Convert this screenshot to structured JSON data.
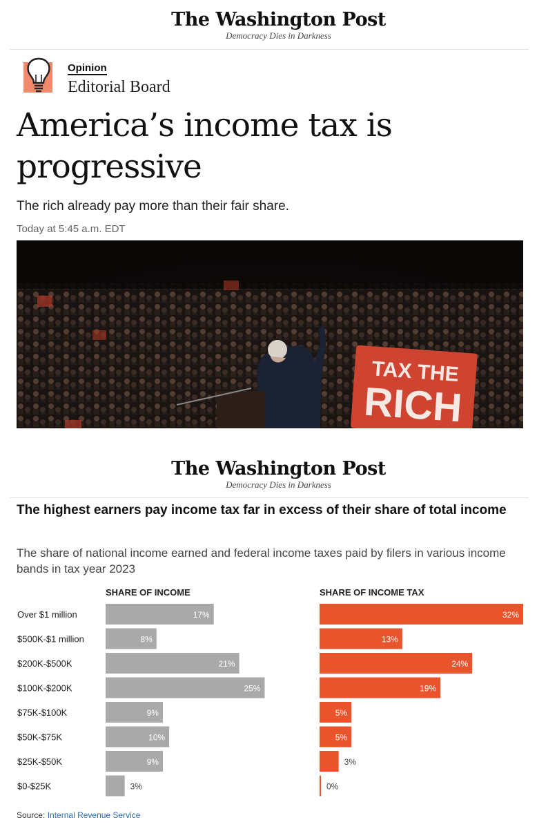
{
  "masthead": {
    "wordmark": "The Washington Post",
    "tagline": "Democracy Dies in Darkness"
  },
  "article": {
    "section": "Opinion",
    "author": "Editorial Board",
    "headline": "America’s income tax is progressive",
    "subhead": "The rich already pay more than their fair share.",
    "timestamp": "Today at 5:45 a.m. EDT"
  },
  "photo": {
    "sign_line1": "TAX THE",
    "sign_line2": "RICH"
  },
  "chart_masthead": {
    "wordmark": "The Washington Post",
    "tagline": "Democracy Dies in Darkness"
  },
  "colors": {
    "income_bar": "#a9a9a9",
    "tax_bar": "#e8542c",
    "accent_bulb": "#f08a6a"
  },
  "chart_data": {
    "type": "bar",
    "orientation": "horizontal",
    "title": "The highest earners pay income tax far in excess of their share of total income",
    "subtitle": "The share of national income earned and federal income taxes paid by filers in various income bands in tax year 2023",
    "categories": [
      "Over $1 million",
      "$500K-$1 million",
      "$200K-$500K",
      "$100K-$200K",
      "$75K-$100K",
      "$50K-$75K",
      "$25K-$50K",
      "$0-$25K"
    ],
    "series": [
      {
        "name": "SHARE OF INCOME",
        "values": [
          17,
          8,
          21,
          25,
          9,
          10,
          9,
          3
        ],
        "labels": [
          "17%",
          "8%",
          "21%",
          "25%",
          "9%",
          "10%",
          "9%",
          "3%"
        ]
      },
      {
        "name": "SHARE OF INCOME TAX",
        "values": [
          32,
          13,
          24,
          19,
          5,
          5,
          3,
          0
        ],
        "labels": [
          "32%",
          "13%",
          "24%",
          "19%",
          "5%",
          "5%",
          "3%",
          "0%"
        ]
      }
    ],
    "xlim": [
      0,
      32
    ],
    "source_prefix": "Source: ",
    "source_name": "Internal Revenue Service"
  }
}
